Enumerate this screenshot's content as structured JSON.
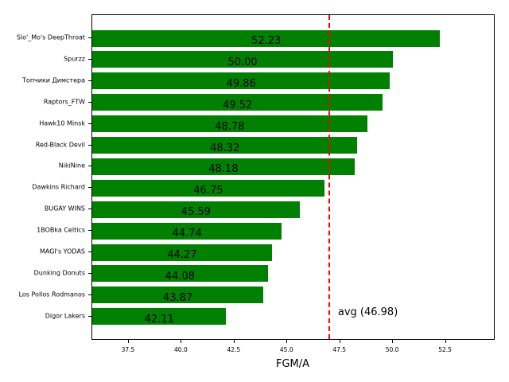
{
  "chart_data": {
    "type": "bar",
    "orientation": "horizontal",
    "title": "",
    "xlabel": "FGM/A",
    "ylabel": "",
    "xlim": [
      35.77,
      54.85
    ],
    "xticks": [
      "37.5",
      "40.0",
      "42.5",
      "45.0",
      "47.5",
      "50.0",
      "52.5"
    ],
    "grid": false,
    "bar_color": "#008000",
    "categories": [
      "Slo'_Mo's DeepThroat",
      "Spurzz",
      "Топчики Димстера",
      "Raptors_FTW",
      "Hawk10 Minsk",
      "Red-Black Devil",
      "NikiNine",
      "Dawkins Richard",
      "BUGAY WINS",
      "1BOBka Celtics",
      "MAGI's YODAS",
      "Dunking Donuts",
      "Los Pollos Rodmanos",
      "Digor Lakers"
    ],
    "values": [
      52.23,
      50.0,
      49.86,
      49.52,
      48.78,
      48.32,
      48.18,
      46.75,
      45.59,
      44.74,
      44.27,
      44.08,
      43.87,
      42.11
    ],
    "value_labels": [
      "52.23",
      "50.00",
      "49.86",
      "49.52",
      "48.78",
      "48.32",
      "48.18",
      "46.75",
      "45.59",
      "44.74",
      "44.27",
      "44.08",
      "43.87",
      "42.11"
    ],
    "reference_line": {
      "value": 46.98,
      "label": "avg (46.98)",
      "style": "dashed",
      "color": "#ff0000"
    }
  }
}
